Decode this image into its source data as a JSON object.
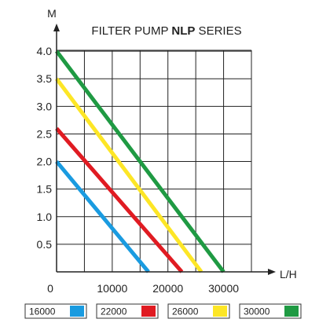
{
  "chart_data": {
    "type": "line",
    "title_parts": [
      {
        "text": "FILTER PUMP ",
        "bold": false
      },
      {
        "text": "NLP",
        "bold": true
      },
      {
        "text": " SERIES",
        "bold": false
      }
    ],
    "xlabel": "L/H",
    "ylabel": "M",
    "xlim": [
      0,
      35000
    ],
    "ylim": [
      0,
      4.5
    ],
    "x_ticks": [
      0,
      10000,
      20000,
      30000
    ],
    "x_tick_labels": [
      "0",
      "10000",
      "20000",
      "30000"
    ],
    "y_ticks": [
      0.5,
      1.0,
      1.5,
      2.0,
      2.5,
      3.0,
      3.5,
      4.0
    ],
    "y_tick_labels": [
      "0.5",
      "1.0",
      "1.5",
      "2.0",
      "2.5",
      "3.0",
      "3.5",
      "4.0"
    ],
    "grid": true,
    "legend_position": "bottom",
    "series": [
      {
        "name": "16000",
        "color": "#1a9be0",
        "x": [
          0,
          16500
        ],
        "y": [
          2.0,
          0
        ]
      },
      {
        "name": "22000",
        "color": "#e01b22",
        "x": [
          0,
          22500
        ],
        "y": [
          2.6,
          0
        ]
      },
      {
        "name": "26000",
        "color": "#fde626",
        "x": [
          0,
          26000
        ],
        "y": [
          3.5,
          0
        ]
      },
      {
        "name": "30000",
        "color": "#1f9a43",
        "x": [
          0,
          30000
        ],
        "y": [
          4.0,
          0
        ]
      }
    ]
  }
}
